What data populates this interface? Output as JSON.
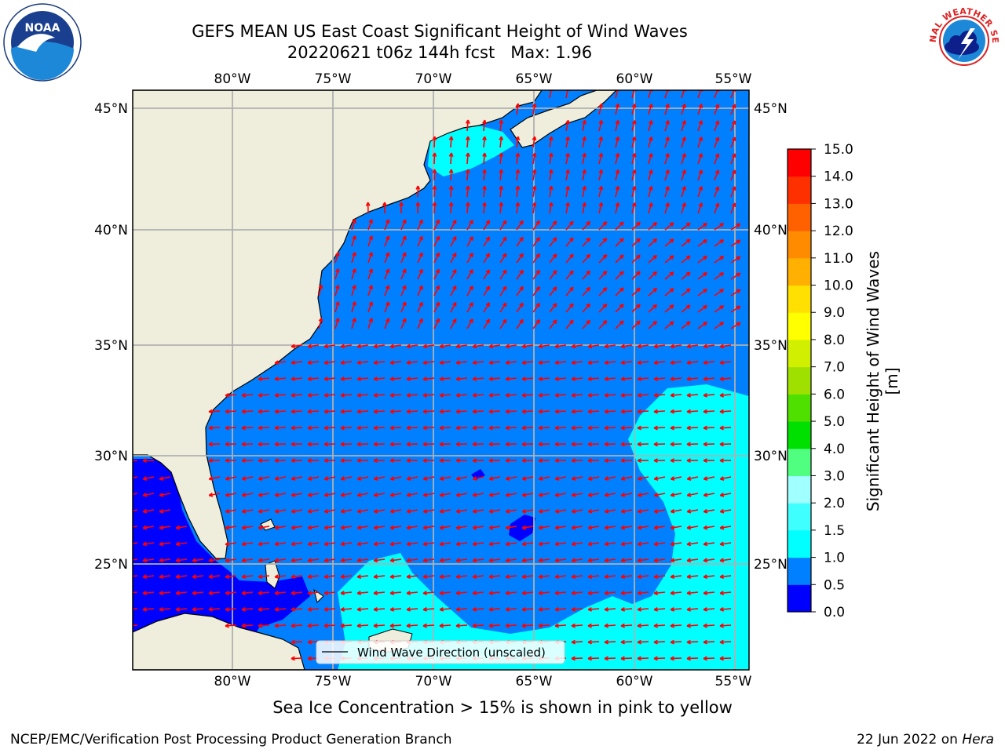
{
  "title": {
    "line1": "GEFS MEAN US East Coast Significant Height of Wind Waves",
    "run": "20220621 t06z 144h fcst",
    "max": "Max: 1.96"
  },
  "logos": {
    "left": {
      "icon": "noaa-logo",
      "text": "NOAA"
    },
    "right": {
      "icon": "nws-logo",
      "text": "NATIONAL WEATHER SERVICE"
    }
  },
  "map": {
    "lon_labels": [
      "80°W",
      "75°W",
      "70°W",
      "65°W",
      "60°W",
      "55°W"
    ],
    "lat_labels": [
      "45°N",
      "40°N",
      "35°N",
      "30°N",
      "25°N"
    ],
    "legend": "Wind Wave Direction (unscaled)",
    "colors": {
      "land": "#efeedc",
      "water": "#0080ff",
      "water_low": "#0000ff",
      "water_mid": "#00ffff",
      "grid": "#b0b0b0",
      "arrow": "#ff0000"
    }
  },
  "colorbar": {
    "title": "Significant Height of Wind Waves [m]",
    "ticks": [
      "0.0",
      "0.5",
      "1.0",
      "1.5",
      "2.0",
      "3.0",
      "4.0",
      "5.0",
      "6.0",
      "7.0",
      "8.0",
      "9.0",
      "10.0",
      "11.0",
      "12.0",
      "13.0",
      "14.0",
      "15.0"
    ],
    "colors": [
      "#0000ff",
      "#0080ff",
      "#00ffff",
      "#40ffff",
      "#a0ffff",
      "#50ff80",
      "#00e000",
      "#50e000",
      "#a0e000",
      "#d0f000",
      "#ffff00",
      "#ffe000",
      "#ffb000",
      "#ff8c00",
      "#ff6000",
      "#ff3000",
      "#ff0000"
    ]
  },
  "ice_note": "Sea Ice Concentration > 15% is shown in pink to yellow",
  "footer": {
    "left": "NCEP/EMC/Verification Post Processing Product Generation Branch",
    "date": "22 Jun 2022 on",
    "host": "Hera"
  }
}
